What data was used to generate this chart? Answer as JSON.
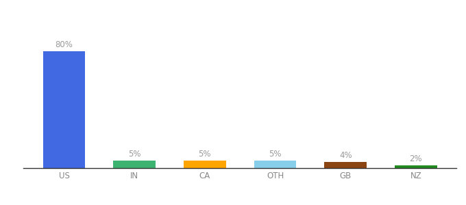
{
  "categories": [
    "US",
    "IN",
    "CA",
    "OTH",
    "GB",
    "NZ"
  ],
  "values": [
    80,
    5,
    5,
    5,
    4,
    2
  ],
  "bar_colors": [
    "#4169e1",
    "#3cb371",
    "#ffa500",
    "#87ceeb",
    "#8b4513",
    "#228b22"
  ],
  "labels": [
    "80%",
    "5%",
    "5%",
    "5%",
    "4%",
    "2%"
  ],
  "ylim": [
    0,
    90
  ],
  "background_color": "#ffffff",
  "label_color": "#999999",
  "label_fontsize": 8.5,
  "tick_fontsize": 8.5,
  "bar_width": 0.6,
  "tick_color": "#888888"
}
